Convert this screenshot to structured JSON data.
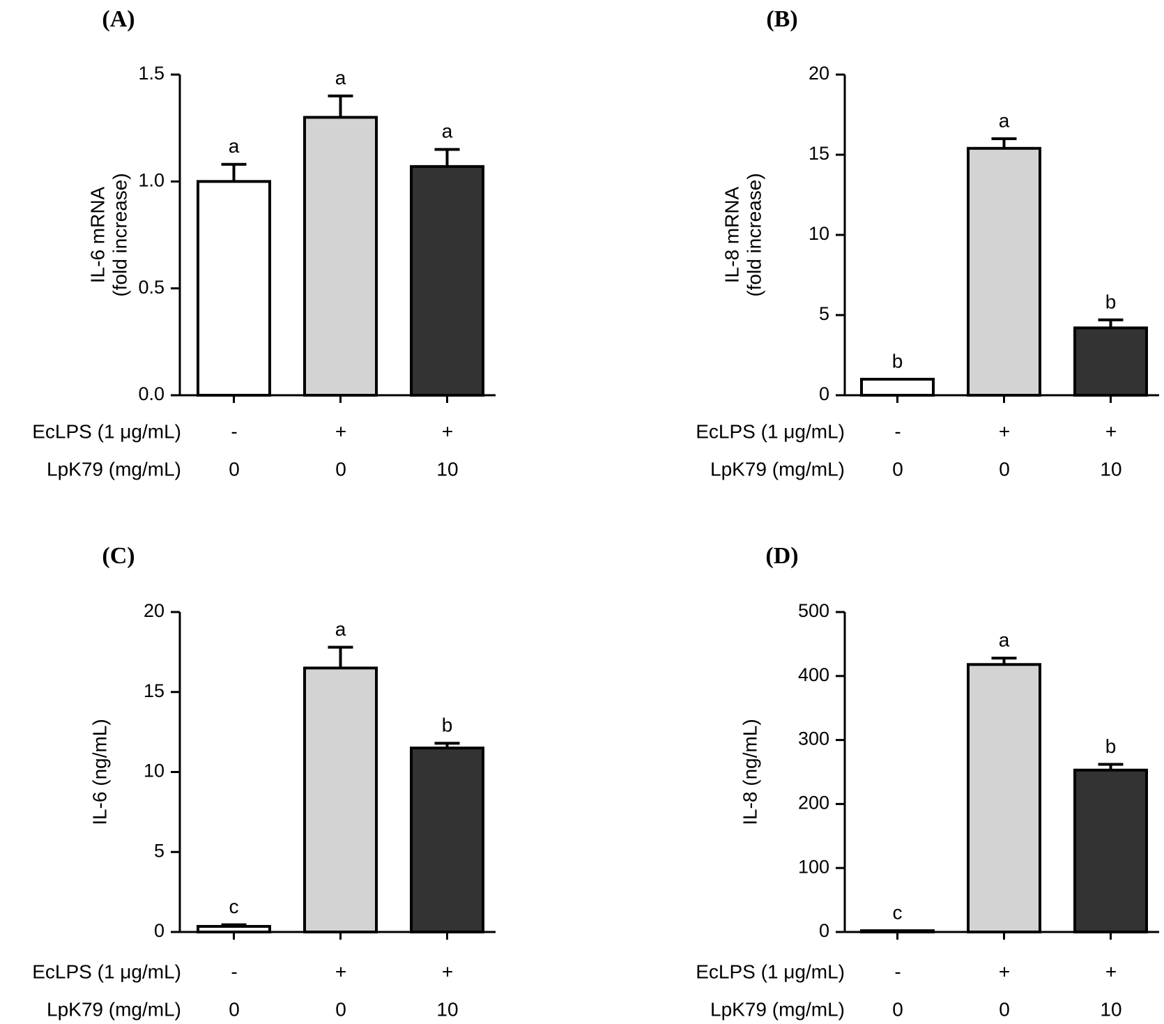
{
  "colors": {
    "control": "#ffffff",
    "lps": "#d3d3d3",
    "lps_lpk79": "#333333",
    "stroke": "#000000"
  },
  "chart_data": [
    {
      "panel": "(A)",
      "type": "bar",
      "ylabel_lines": [
        "IL-6 mRNA",
        "(fold increase)"
      ],
      "ylim": [
        0,
        1.5
      ],
      "yticks": [
        "0.0",
        "0.5",
        "1.0",
        "1.5"
      ],
      "ytick_values": [
        0,
        0.5,
        1.0,
        1.5
      ],
      "values": [
        1.0,
        1.3,
        1.07
      ],
      "errors": [
        0.08,
        0.1,
        0.08
      ],
      "significance": [
        "a",
        "a",
        "a"
      ],
      "conditions": [
        {
          "label": "EcLPS (1 μg/mL)",
          "values": [
            "-",
            "+",
            "+"
          ]
        },
        {
          "label": "LpK79 (mg/mL)",
          "values": [
            "0",
            "0",
            "10"
          ]
        }
      ]
    },
    {
      "panel": "(B)",
      "type": "bar",
      "ylabel_lines": [
        "IL-8 mRNA",
        "(fold increase)"
      ],
      "ylim": [
        0,
        20
      ],
      "yticks": [
        "0",
        "5",
        "10",
        "15",
        "20"
      ],
      "ytick_values": [
        0,
        5,
        10,
        15,
        20
      ],
      "values": [
        1.0,
        15.4,
        4.2
      ],
      "errors": [
        0.0,
        0.6,
        0.5
      ],
      "significance": [
        "b",
        "a",
        "b"
      ],
      "conditions": [
        {
          "label": "EcLPS (1 μg/mL)",
          "values": [
            "-",
            "+",
            "+"
          ]
        },
        {
          "label": "LpK79 (mg/mL)",
          "values": [
            "0",
            "0",
            "10"
          ]
        }
      ]
    },
    {
      "panel": "(C)",
      "type": "bar",
      "ylabel_lines": [
        "IL-6  (ng/mL)"
      ],
      "ylim": [
        0,
        20
      ],
      "yticks": [
        "0",
        "5",
        "10",
        "15",
        "20"
      ],
      "ytick_values": [
        0,
        5,
        10,
        15,
        20
      ],
      "values": [
        0.35,
        16.5,
        11.5
      ],
      "errors": [
        0.1,
        1.3,
        0.3
      ],
      "significance": [
        "c",
        "a",
        "b"
      ],
      "conditions": [
        {
          "label": "EcLPS (1 μg/mL)",
          "values": [
            "-",
            "+",
            "+"
          ]
        },
        {
          "label": "LpK79 (mg/mL)",
          "values": [
            "0",
            "0",
            "10"
          ]
        }
      ]
    },
    {
      "panel": "(D)",
      "type": "bar",
      "ylabel_lines": [
        "IL-8  (ng/mL)"
      ],
      "ylim": [
        0,
        500
      ],
      "yticks": [
        "0",
        "100",
        "200",
        "300",
        "400",
        "500"
      ],
      "ytick_values": [
        0,
        100,
        200,
        300,
        400,
        500
      ],
      "values": [
        2,
        418,
        253
      ],
      "errors": [
        0,
        10,
        9
      ],
      "significance": [
        "c",
        "a",
        "b"
      ],
      "conditions": [
        {
          "label": "EcLPS (1 μg/mL)",
          "values": [
            "-",
            "+",
            "+"
          ]
        },
        {
          "label": "LpK79 (mg/mL)",
          "values": [
            "0",
            "0",
            "10"
          ]
        }
      ]
    }
  ]
}
